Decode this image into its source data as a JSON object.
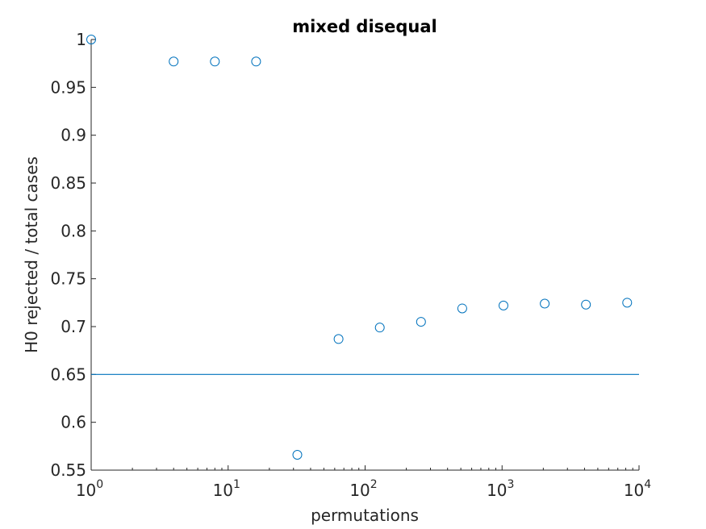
{
  "chart_data": {
    "type": "scatter",
    "title": "mixed disequal",
    "xlabel": "permutations",
    "ylabel": "H0 rejected / total cases",
    "xscale": "log",
    "xlim": [
      1,
      10000
    ],
    "ylim": [
      0.55,
      1
    ],
    "y_ticks": [
      "0.55",
      "0.6",
      "0.65",
      "0.7",
      "0.75",
      "0.8",
      "0.85",
      "0.9",
      "0.95",
      "1"
    ],
    "x_ticks": [
      {
        "base": "10",
        "exp": "0"
      },
      {
        "base": "10",
        "exp": "1"
      },
      {
        "base": "10",
        "exp": "2"
      },
      {
        "base": "10",
        "exp": "3"
      },
      {
        "base": "10",
        "exp": "4"
      }
    ],
    "grid": false,
    "series": [
      {
        "marker": "circle-open",
        "color": "#0072BD",
        "x": [
          1,
          4,
          8,
          16,
          32,
          64,
          128,
          256,
          512,
          1024,
          2048,
          4096,
          8192
        ],
        "y": [
          1.0,
          0.977,
          0.977,
          0.977,
          0.566,
          0.687,
          0.699,
          0.705,
          0.719,
          0.722,
          0.724,
          0.723,
          0.725
        ]
      }
    ],
    "reference_line": {
      "y": 0.65,
      "color": "#0072BD"
    }
  }
}
